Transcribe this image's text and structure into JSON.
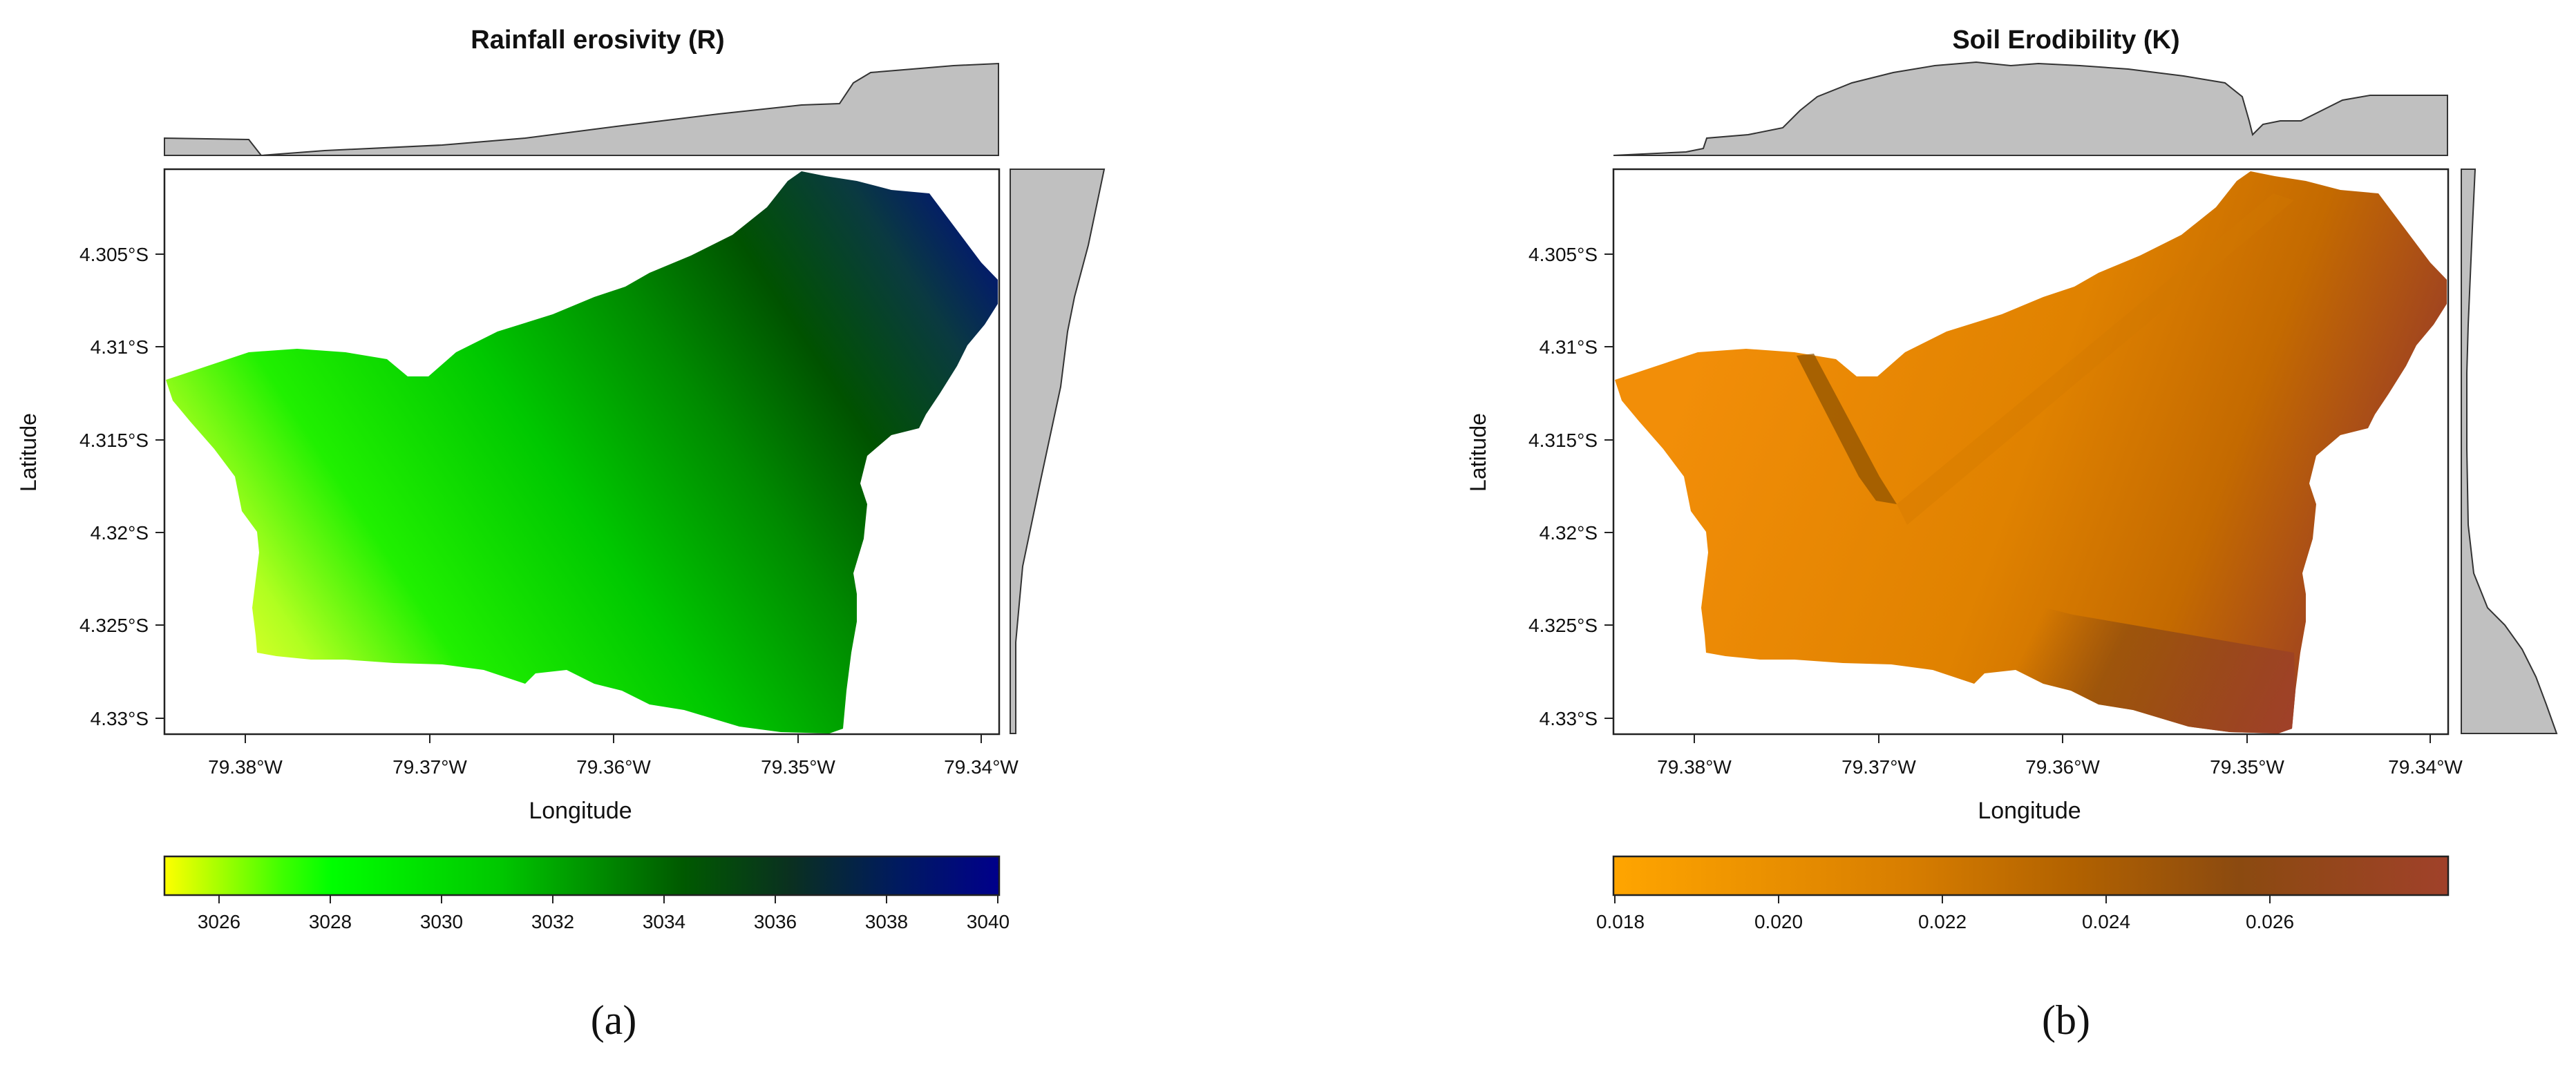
{
  "panels": [
    {
      "id": "a",
      "title": "Rainfall erosivity (R)",
      "panel_label": "(a)",
      "xlabel": "Longitude",
      "ylabel": "Latitude",
      "x_ticks": [
        "79.38°W",
        "79.37°W",
        "79.36°W",
        "79.35°W",
        "79.34°W"
      ],
      "y_ticks": [
        "4.305°S",
        "4.31°S",
        "4.315°S",
        "4.32°S",
        "4.325°S",
        "4.33°S"
      ],
      "colorbar": {
        "ticks": [
          "3026",
          "3028",
          "3030",
          "3032",
          "3034",
          "3036",
          "3038",
          "3040"
        ],
        "range": [
          3025,
          3040
        ],
        "colors": [
          "#ffff00",
          "#00ff00",
          "#00e400",
          "#00a800",
          "#005a00",
          "#0a3020",
          "#001870",
          "#00008b"
        ]
      }
    },
    {
      "id": "b",
      "title": "Soil Erodibility (K)",
      "panel_label": "(b)",
      "xlabel": "Longitude",
      "ylabel": "Latitude",
      "x_ticks": [
        "79.38°W",
        "79.37°W",
        "79.36°W",
        "79.35°W",
        "79.34°W"
      ],
      "y_ticks": [
        "4.305°S",
        "4.31°S",
        "4.315°S",
        "4.32°S",
        "4.325°S",
        "4.33°S"
      ],
      "colorbar": {
        "ticks": [
          "0.018",
          "0.020",
          "0.022",
          "0.024",
          "0.026"
        ],
        "range": [
          0.018,
          0.028
        ],
        "colors": [
          "#ffa500",
          "#e88a00",
          "#b86a00",
          "#8b4a10",
          "#a0412a"
        ]
      }
    }
  ]
}
